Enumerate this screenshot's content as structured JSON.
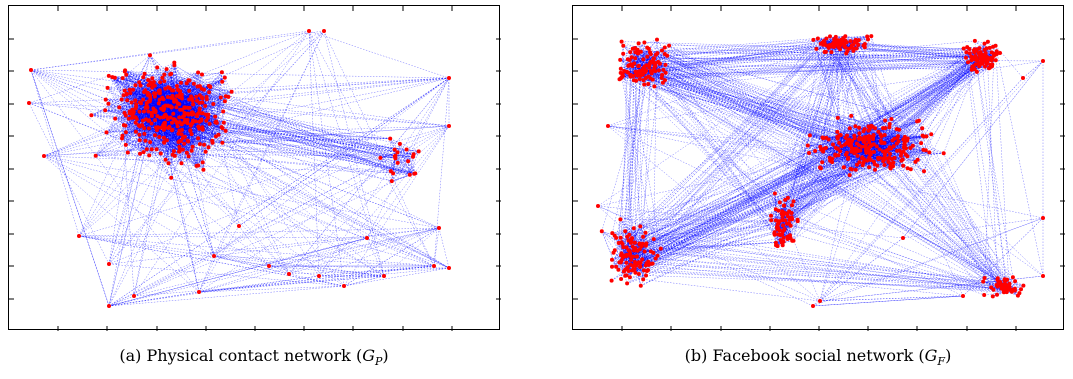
{
  "figure": {
    "panels": [
      {
        "label": "(a)",
        "caption_text": "Physical contact network (",
        "symbol": "G",
        "subscript": "P",
        "caption_close": ")"
      },
      {
        "label": "(b)",
        "caption_text": "Facebook social network (",
        "symbol": "G",
        "subscript": "F",
        "caption_close": ")"
      }
    ],
    "colors": {
      "node": "#ff0000",
      "edge": "#0000ff",
      "frame": "#000000"
    }
  }
}
